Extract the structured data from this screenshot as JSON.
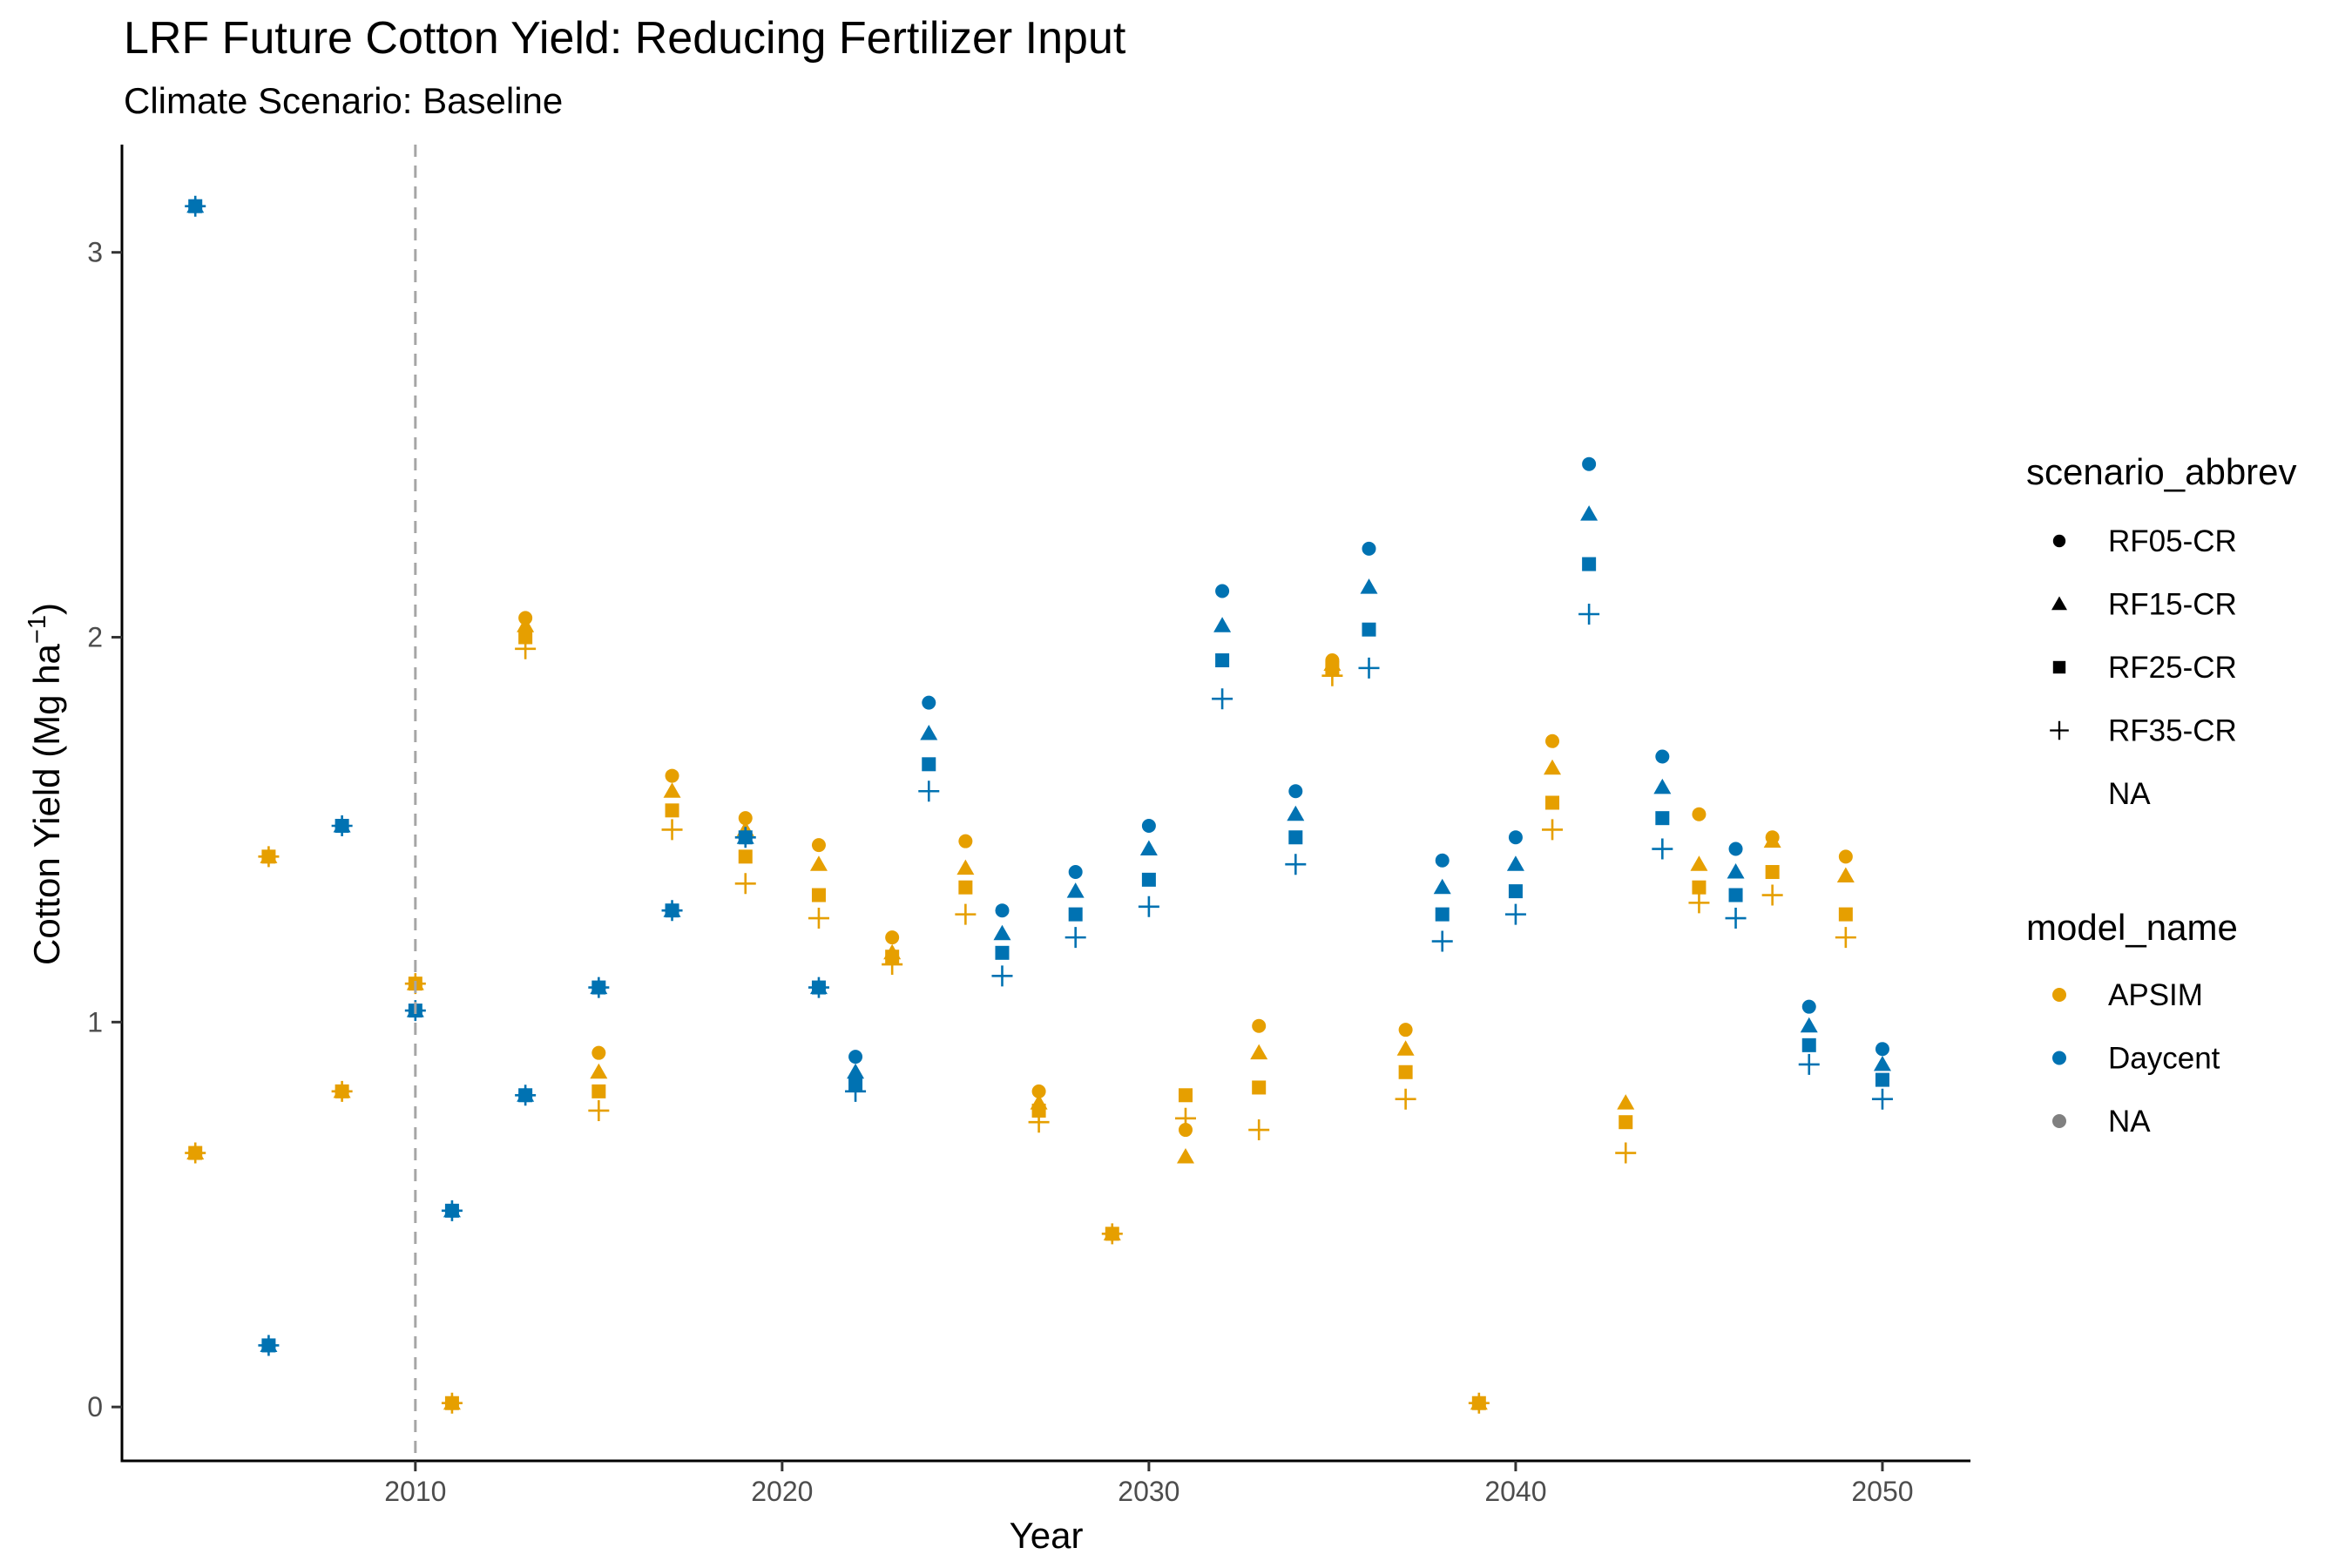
{
  "chart_data": {
    "type": "scatter",
    "title": "LRF Future Cotton Yield: Reducing Fertilizer Input",
    "subtitle": "Climate Scenario: Baseline",
    "xlabel": "Year",
    "ylabel": "Cotton Yield (Mg ha",
    "ylabel_sup": "−1",
    "ylabel_close": ")",
    "xlim": [
      2002.0,
      2052.4
    ],
    "ylim": [
      -0.14,
      3.28
    ],
    "x_ticks": [
      2010,
      2020,
      2030,
      2040,
      2050
    ],
    "y_ticks": [
      0,
      1,
      2,
      3
    ],
    "vline_x": 2010,
    "grid": false,
    "legend_position": "right",
    "legend_shape": {
      "title": "scenario_abbrev",
      "entries": [
        {
          "label": "RF05-CR",
          "shape": "circle"
        },
        {
          "label": "RF15-CR",
          "shape": "triangle"
        },
        {
          "label": "RF25-CR",
          "shape": "square"
        },
        {
          "label": "RF35-CR",
          "shape": "plus"
        },
        {
          "label": "NA",
          "shape": "none"
        }
      ]
    },
    "legend_color": {
      "title": "model_name",
      "entries": [
        {
          "label": "APSIM",
          "color": "#E69F00"
        },
        {
          "label": "Daycent",
          "color": "#0072B2"
        },
        {
          "label": "NA",
          "color": "#808080"
        }
      ]
    },
    "series": [
      {
        "model": "APSIM",
        "color": "#E69F00",
        "x": [
          2004,
          2006,
          2008,
          2010,
          2011,
          2013,
          2015,
          2017,
          2019,
          2021,
          2023,
          2025,
          2027,
          2029,
          2031,
          2033,
          2035,
          2037,
          2039,
          2041,
          2043,
          2045,
          2047,
          2049
        ],
        "RF05-CR": [
          0.66,
          1.43,
          0.82,
          1.1,
          0.01,
          2.05,
          0.92,
          1.64,
          1.53,
          1.46,
          1.22,
          1.47,
          0.82,
          0.45,
          0.72,
          0.99,
          1.94,
          0.98,
          0.01,
          1.73,
          null,
          1.54,
          1.48,
          1.43
        ],
        "RF15-CR": [
          0.66,
          1.43,
          0.82,
          1.1,
          0.01,
          2.03,
          0.87,
          1.6,
          1.5,
          1.41,
          1.18,
          1.4,
          0.79,
          0.45,
          0.65,
          0.92,
          1.93,
          0.93,
          0.01,
          1.66,
          0.79,
          1.41,
          1.47,
          1.38
        ],
        "RF25-CR": [
          0.66,
          1.43,
          0.82,
          1.1,
          0.01,
          2.0,
          0.82,
          1.55,
          1.43,
          1.33,
          1.17,
          1.35,
          0.77,
          0.45,
          0.81,
          0.83,
          1.92,
          0.87,
          0.01,
          1.57,
          0.74,
          1.35,
          1.39,
          1.28
        ],
        "RF35-CR": [
          0.66,
          1.43,
          0.82,
          1.1,
          0.01,
          1.97,
          0.77,
          1.5,
          1.36,
          1.27,
          1.15,
          1.28,
          0.74,
          0.45,
          0.75,
          0.72,
          1.9,
          0.8,
          0.01,
          1.5,
          0.66,
          1.31,
          1.33,
          1.22
        ]
      },
      {
        "model": "Daycent",
        "color": "#0072B2",
        "x": [
          2004,
          2006,
          2008,
          2010,
          2011,
          2013,
          2015,
          2017,
          2019,
          2021,
          2022,
          2024,
          2026,
          2028,
          2030,
          2032,
          2034,
          2036,
          2038,
          2040,
          2042,
          2044,
          2046,
          2048,
          2050
        ],
        "RF05-CR": [
          3.12,
          0.16,
          1.51,
          1.03,
          0.51,
          0.81,
          1.09,
          1.29,
          1.48,
          1.09,
          0.91,
          1.83,
          1.29,
          1.39,
          1.51,
          2.12,
          1.6,
          2.23,
          1.42,
          1.48,
          2.45,
          1.69,
          1.45,
          1.04,
          0.93
        ],
        "RF15-CR": [
          3.12,
          0.16,
          1.51,
          1.03,
          0.51,
          0.81,
          1.09,
          1.29,
          1.48,
          1.09,
          0.87,
          1.75,
          1.23,
          1.34,
          1.45,
          2.03,
          1.54,
          2.13,
          1.35,
          1.41,
          2.32,
          1.61,
          1.39,
          0.99,
          0.89
        ],
        "RF25-CR": [
          3.12,
          0.16,
          1.51,
          1.03,
          0.51,
          0.81,
          1.09,
          1.29,
          1.48,
          1.09,
          0.84,
          1.67,
          1.18,
          1.28,
          1.37,
          1.94,
          1.48,
          2.02,
          1.28,
          1.34,
          2.19,
          1.53,
          1.33,
          0.94,
          0.85
        ],
        "RF35-CR": [
          3.12,
          0.16,
          1.51,
          1.03,
          0.51,
          0.81,
          1.09,
          1.29,
          1.48,
          1.09,
          0.82,
          1.6,
          1.12,
          1.22,
          1.3,
          1.84,
          1.41,
          1.92,
          1.21,
          1.28,
          2.06,
          1.45,
          1.27,
          0.89,
          0.8
        ]
      }
    ]
  }
}
